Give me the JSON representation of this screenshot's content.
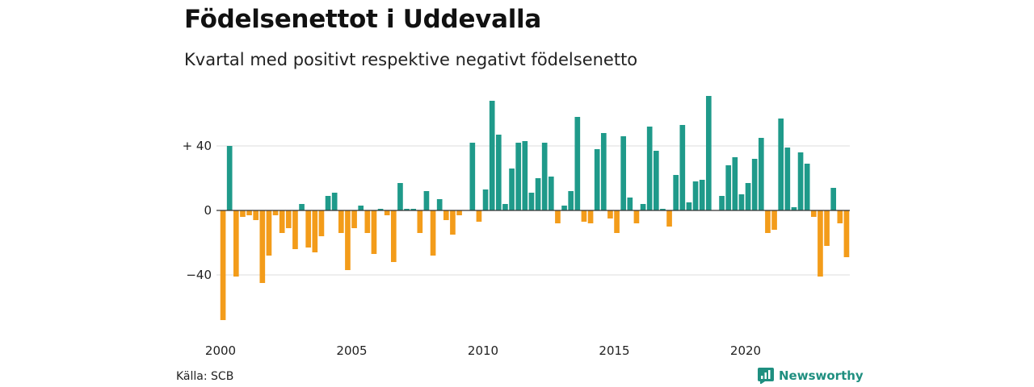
{
  "title": "Födelsenettot i Uddevalla",
  "subtitle": "Kvartal med positivt respektive negativt födelsenetto",
  "source": "Källa: SCB",
  "brand": {
    "label": "Newsworthy",
    "icon": "newsworthy-logo-icon"
  },
  "colors": {
    "positive": "#1f9a8a",
    "negative": "#f39c1a",
    "grid": "#dddddd",
    "zero": "#333333"
  },
  "chart_data": {
    "type": "bar",
    "start_year": 2000,
    "quarters_per_year": 4,
    "ylim": [
      -70,
      72
    ],
    "y_ticks": [
      {
        "value": 40,
        "label": "+ 40"
      },
      {
        "value": 0,
        "label": "0"
      },
      {
        "value": -40,
        "label": "−40"
      }
    ],
    "x_ticks": [
      {
        "year": 2000,
        "label": "2000"
      },
      {
        "year": 2005,
        "label": "2005"
      },
      {
        "year": 2010,
        "label": "2010"
      },
      {
        "year": 2015,
        "label": "2015"
      },
      {
        "year": 2020,
        "label": "2020"
      }
    ],
    "grid": true,
    "values": [
      -68,
      40,
      -41,
      -4,
      -3,
      -6,
      -45,
      -28,
      -3,
      -14,
      -11,
      -24,
      4,
      -23,
      -26,
      -16,
      9,
      11,
      -14,
      -37,
      -11,
      3,
      -14,
      -27,
      1,
      -3,
      -32,
      17,
      1,
      1,
      -14,
      12,
      -28,
      7,
      -6,
      -15,
      -3,
      0,
      42,
      -7,
      13,
      68,
      47,
      4,
      26,
      42,
      43,
      11,
      20,
      42,
      21,
      -8,
      3,
      12,
      58,
      -7,
      -8,
      38,
      48,
      -5,
      -14,
      46,
      8,
      -8,
      4,
      52,
      37,
      1,
      -10,
      22,
      53,
      5,
      18,
      19,
      71,
      0,
      9,
      28,
      33,
      10,
      17,
      32,
      45,
      -14,
      -12,
      57,
      39,
      2,
      36,
      29,
      -4,
      -41,
      -22,
      14,
      -8,
      -29
    ]
  }
}
